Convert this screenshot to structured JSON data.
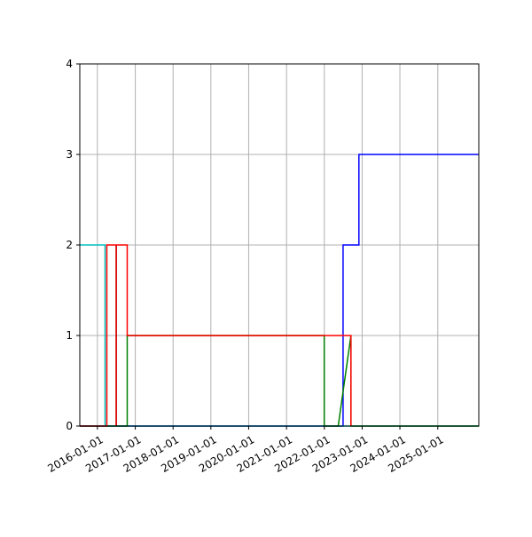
{
  "chart_data": {
    "type": "line",
    "title": "",
    "xlabel": "",
    "ylabel": "",
    "x_axis_type": "date",
    "xlim": [
      "2015-07-15",
      "2026-02-01"
    ],
    "ylim": [
      0,
      4
    ],
    "grid": true,
    "legend": "none",
    "x_tick_labels": [
      "2016-01-01",
      "2017-01-01",
      "2018-01-01",
      "2019-01-01",
      "2020-01-01",
      "2021-01-01",
      "2022-01-01",
      "2023-01-01",
      "2024-01-01",
      "2025-01-01"
    ],
    "y_tick_labels": [
      "0",
      "1",
      "2",
      "3",
      "4"
    ],
    "series": [
      {
        "color": "#0000ff",
        "points": [
          [
            "2015-07-15",
            0
          ],
          [
            "2022-07-01",
            0
          ],
          [
            "2022-07-01",
            2
          ],
          [
            "2022-12-01",
            2
          ],
          [
            "2022-12-01",
            3
          ],
          [
            "2026-02-01",
            3
          ]
        ]
      },
      {
        "color": "#00bfbf",
        "points": [
          [
            "2015-07-15",
            2
          ],
          [
            "2016-03-15",
            2
          ],
          [
            "2016-03-15",
            0
          ],
          [
            "2026-02-01",
            0
          ]
        ]
      },
      {
        "color": "#008000",
        "points": [
          [
            "2015-07-15",
            0
          ],
          [
            "2016-10-15",
            0
          ],
          [
            "2016-10-15",
            1
          ],
          [
            "2021-12-31",
            1
          ],
          [
            "2021-12-31",
            0
          ],
          [
            "2022-05-15",
            0
          ],
          [
            "2022-09-15",
            1
          ],
          [
            "2022-09-15",
            0
          ],
          [
            "2026-02-01",
            0
          ]
        ]
      },
      {
        "color": "#ff0000",
        "points": [
          [
            "2015-07-15",
            0
          ],
          [
            "2016-04-01",
            0
          ],
          [
            "2016-04-01",
            2
          ],
          [
            "2016-10-15",
            2
          ],
          [
            "2016-10-15",
            1
          ],
          [
            "2022-09-15",
            1
          ],
          [
            "2022-09-15",
            0
          ]
        ]
      },
      {
        "color": "#ff0000",
        "points": [
          [
            "2016-07-01",
            0
          ],
          [
            "2016-07-01",
            2
          ]
        ]
      },
      {
        "color": "#cc0000",
        "points": [
          [
            "2016-07-01",
            0
          ],
          [
            "2016-07-01",
            2
          ]
        ]
      }
    ]
  }
}
